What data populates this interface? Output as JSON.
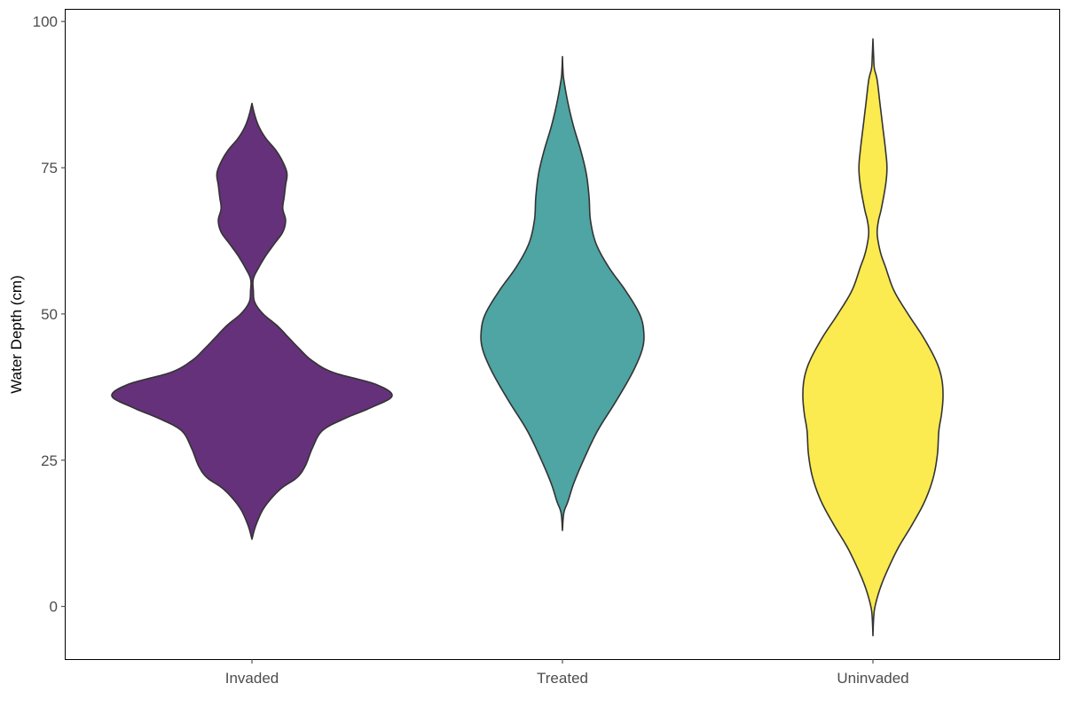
{
  "chart_data": {
    "type": "violin",
    "title": "",
    "xlabel": "",
    "ylabel": "Water Depth (cm)",
    "ylim": [
      -9,
      102
    ],
    "yticks": [
      0,
      25,
      50,
      75,
      100
    ],
    "grid": false,
    "legend": "none",
    "categories": [
      "Invaded",
      "Treated",
      "Uninvaded"
    ],
    "series": [
      {
        "category": "Invaded",
        "color": "#65317a",
        "range": [
          11.5,
          86
        ],
        "density": [
          [
            11.5,
            0
          ],
          [
            14,
            0.03
          ],
          [
            17,
            0.09
          ],
          [
            20,
            0.2
          ],
          [
            22,
            0.32
          ],
          [
            24,
            0.38
          ],
          [
            27,
            0.43
          ],
          [
            30,
            0.5
          ],
          [
            32,
            0.65
          ],
          [
            34,
            0.85
          ],
          [
            36,
            1.0
          ],
          [
            38,
            0.88
          ],
          [
            40,
            0.58
          ],
          [
            42,
            0.43
          ],
          [
            44,
            0.34
          ],
          [
            46,
            0.26
          ],
          [
            48,
            0.18
          ],
          [
            50,
            0.08
          ],
          [
            52,
            0.02
          ],
          [
            54,
            0.01
          ],
          [
            56,
            0.01
          ],
          [
            58,
            0.05
          ],
          [
            60,
            0.1
          ],
          [
            62,
            0.16
          ],
          [
            64,
            0.22
          ],
          [
            66,
            0.24
          ],
          [
            68,
            0.22
          ],
          [
            70,
            0.23
          ],
          [
            72,
            0.24
          ],
          [
            74,
            0.25
          ],
          [
            76,
            0.22
          ],
          [
            78,
            0.17
          ],
          [
            80,
            0.1
          ],
          [
            82,
            0.05
          ],
          [
            84,
            0.02
          ],
          [
            86,
            0
          ]
        ]
      },
      {
        "category": "Treated",
        "color": "#4ea5a3",
        "range": [
          13,
          94
        ],
        "density": [
          [
            13,
            0
          ],
          [
            16,
            0.01
          ],
          [
            18,
            0.04
          ],
          [
            21,
            0.08
          ],
          [
            25,
            0.15
          ],
          [
            30,
            0.25
          ],
          [
            35,
            0.38
          ],
          [
            40,
            0.5
          ],
          [
            44,
            0.57
          ],
          [
            47,
            0.58
          ],
          [
            50,
            0.55
          ],
          [
            54,
            0.45
          ],
          [
            58,
            0.33
          ],
          [
            62,
            0.24
          ],
          [
            66,
            0.2
          ],
          [
            70,
            0.19
          ],
          [
            74,
            0.17
          ],
          [
            78,
            0.13
          ],
          [
            82,
            0.08
          ],
          [
            86,
            0.04
          ],
          [
            90,
            0.01
          ],
          [
            92,
            0.003
          ],
          [
            94,
            0
          ]
        ]
      },
      {
        "category": "Uninvaded",
        "color": "#fbea50",
        "range": [
          -5,
          97
        ],
        "density": [
          [
            -5,
            0
          ],
          [
            -2,
            0.005
          ],
          [
            0,
            0.015
          ],
          [
            3,
            0.05
          ],
          [
            6,
            0.1
          ],
          [
            10,
            0.18
          ],
          [
            14,
            0.28
          ],
          [
            18,
            0.37
          ],
          [
            22,
            0.43
          ],
          [
            26,
            0.46
          ],
          [
            30,
            0.47
          ],
          [
            33,
            0.49
          ],
          [
            36,
            0.5
          ],
          [
            39,
            0.49
          ],
          [
            42,
            0.45
          ],
          [
            46,
            0.36
          ],
          [
            50,
            0.25
          ],
          [
            54,
            0.15
          ],
          [
            58,
            0.09
          ],
          [
            60,
            0.06
          ],
          [
            62,
            0.04
          ],
          [
            64,
            0.03
          ],
          [
            66,
            0.04
          ],
          [
            68,
            0.06
          ],
          [
            72,
            0.09
          ],
          [
            75,
            0.1
          ],
          [
            78,
            0.09
          ],
          [
            82,
            0.07
          ],
          [
            86,
            0.05
          ],
          [
            90,
            0.03
          ],
          [
            92,
            0.01
          ],
          [
            94,
            0.005
          ],
          [
            97,
            0
          ]
        ]
      }
    ]
  }
}
